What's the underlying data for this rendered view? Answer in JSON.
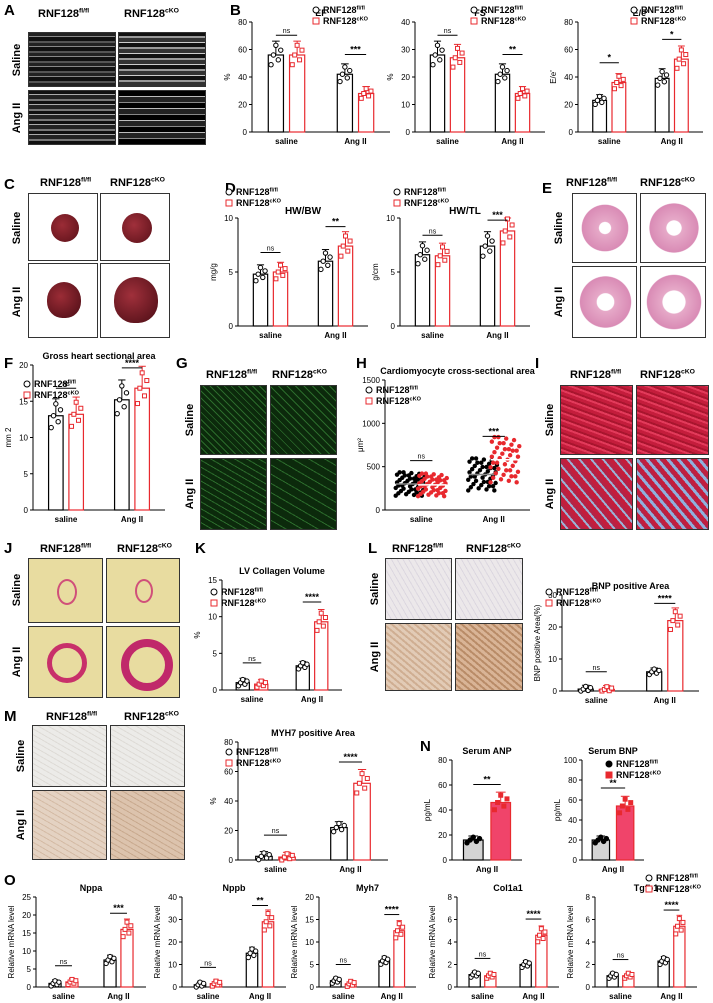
{
  "figure": {
    "geno_fl": "RNF128",
    "geno_fl_sup": "fl/fl",
    "geno_cko": "RNF128",
    "geno_cko_sup": "cKO",
    "row_saline": "Saline",
    "row_ang": "Ang II",
    "panels": {
      "A": "A",
      "B": "B",
      "C": "C",
      "D": "D",
      "E": "E",
      "F": "F",
      "G": "G",
      "H": "H",
      "I": "I",
      "J": "J",
      "K": "K",
      "L": "L",
      "M": "M",
      "N": "N",
      "O": "O"
    },
    "colors": {
      "fl": "#000000",
      "cko": "#e8292e",
      "cko_fill": "#f0446a",
      "fl_fill": "#d3d3d3"
    }
  },
  "chart_data": [
    {
      "id": "B1",
      "type": "bar",
      "title": "EF",
      "ylabel": "%",
      "categories": [
        "saline",
        "Ang II"
      ],
      "ylim": [
        0,
        80
      ],
      "yticks": [
        0,
        20,
        40,
        60,
        80
      ],
      "series": [
        {
          "name": "RNF128fl/fl",
          "values": [
            56,
            42
          ]
        },
        {
          "name": "RNF128cKO",
          "values": [
            56,
            28
          ]
        }
      ],
      "sig": [
        "ns",
        "***"
      ]
    },
    {
      "id": "B2",
      "type": "bar",
      "title": "FS",
      "ylabel": "%",
      "categories": [
        "saline",
        "Ang II"
      ],
      "ylim": [
        0,
        40
      ],
      "yticks": [
        0,
        10,
        20,
        30,
        40
      ],
      "series": [
        {
          "name": "RNF128fl/fl",
          "values": [
            28,
            21
          ]
        },
        {
          "name": "RNF128cKO",
          "values": [
            27,
            14
          ]
        }
      ],
      "sig": [
        "ns",
        "**"
      ]
    },
    {
      "id": "B3",
      "type": "bar",
      "title": "E/e'",
      "ylabel": "E/e'",
      "categories": [
        "saline",
        "Ang II"
      ],
      "ylim": [
        0,
        80
      ],
      "yticks": [
        0,
        20,
        40,
        60,
        80
      ],
      "series": [
        {
          "name": "RNF128fl/fl",
          "values": [
            23,
            39
          ]
        },
        {
          "name": "RNF128cKO",
          "values": [
            36,
            53
          ]
        }
      ],
      "sig": [
        "*",
        "*"
      ]
    },
    {
      "id": "D1",
      "type": "bar",
      "title": "HW/BW",
      "ylabel": "mg/g",
      "categories": [
        "saline",
        "Ang II"
      ],
      "ylim": [
        0,
        10
      ],
      "yticks": [
        0,
        5,
        10
      ],
      "series": [
        {
          "name": "RNF128fl/fl",
          "values": [
            4.8,
            6.0
          ]
        },
        {
          "name": "RNF128cKO",
          "values": [
            5.0,
            7.4
          ]
        }
      ],
      "sig": [
        "ns",
        "**"
      ]
    },
    {
      "id": "D2",
      "type": "bar",
      "title": "HW/TL",
      "ylabel": "g/cm",
      "categories": [
        "saline",
        "Ang II"
      ],
      "ylim": [
        0,
        10
      ],
      "yticks": [
        0,
        5,
        10
      ],
      "series": [
        {
          "name": "RNF128fl/fl",
          "values": [
            6.6,
            7.4
          ]
        },
        {
          "name": "RNF128cKO",
          "values": [
            6.5,
            8.8
          ]
        }
      ],
      "sig": [
        "ns",
        "***"
      ]
    },
    {
      "id": "F",
      "type": "bar",
      "title": "Gross heart sectional area",
      "ylabel": "mm 2",
      "categories": [
        "saline",
        "Ang II"
      ],
      "ylim": [
        0,
        20
      ],
      "yticks": [
        0,
        5,
        10,
        15,
        20
      ],
      "series": [
        {
          "name": "RNF128fl/fl",
          "values": [
            13,
            15.2
          ]
        },
        {
          "name": "RNF128cKO",
          "values": [
            13.2,
            16.8
          ]
        }
      ],
      "sig": [
        "ns",
        "****"
      ]
    },
    {
      "id": "H",
      "type": "scatter",
      "title": "Cardiomyocyte cross-sectional area",
      "ylabel": "μm²",
      "categories": [
        "saline",
        "Ang II"
      ],
      "ylim": [
        0,
        1500
      ],
      "yticks": [
        0,
        500,
        1000,
        1500
      ],
      "series": [
        {
          "name": "RNF128fl/fl",
          "values": [
            300,
            410
          ]
        },
        {
          "name": "RNF128cKO",
          "values": [
            290,
            580
          ]
        }
      ],
      "sig": [
        "ns",
        "***"
      ]
    },
    {
      "id": "K",
      "type": "bar",
      "title": "LV Collagen Volume",
      "ylabel": "%",
      "categories": [
        "saline",
        "Ang II"
      ],
      "ylim": [
        0,
        15
      ],
      "yticks": [
        0,
        5,
        10,
        15
      ],
      "series": [
        {
          "name": "RNF128fl/fl",
          "values": [
            1.0,
            3.3
          ]
        },
        {
          "name": "RNF128cKO",
          "values": [
            0.8,
            9.3
          ]
        }
      ],
      "sig": [
        "ns",
        "****"
      ]
    },
    {
      "id": "L",
      "type": "bar",
      "title": "BNP positive Area",
      "ylabel": "BNP positive Area(%)",
      "categories": [
        "saline",
        "Ang II"
      ],
      "ylim": [
        0,
        30
      ],
      "yticks": [
        0,
        10,
        20,
        30
      ],
      "series": [
        {
          "name": "RNF128fl/fl",
          "values": [
            0.6,
            6.0
          ]
        },
        {
          "name": "RNF128cKO",
          "values": [
            0.5,
            22
          ]
        }
      ],
      "sig": [
        "ns",
        "****"
      ]
    },
    {
      "id": "M",
      "type": "bar",
      "title": "MYH7 positive Area",
      "ylabel": "%",
      "categories": [
        "saline",
        "Ang II"
      ],
      "ylim": [
        0,
        80
      ],
      "yticks": [
        0,
        20,
        40,
        60,
        80
      ],
      "series": [
        {
          "name": "RNF128fl/fl",
          "values": [
            2.5,
            22
          ]
        },
        {
          "name": "RNF128cKO",
          "values": [
            2.0,
            52
          ]
        }
      ],
      "sig": [
        "ns",
        "****"
      ]
    },
    {
      "id": "N1",
      "type": "bar",
      "title": "Serum ANP",
      "ylabel": "pg/mL",
      "categories": [
        "Ang II"
      ],
      "ylim": [
        0,
        80
      ],
      "yticks": [
        0,
        20,
        40,
        60,
        80
      ],
      "series": [
        {
          "name": "RNF128fl/fl",
          "values": [
            16
          ]
        },
        {
          "name": "RNF128cKO",
          "values": [
            46
          ]
        }
      ],
      "sig": [
        "**"
      ]
    },
    {
      "id": "N2",
      "type": "bar",
      "title": "Serum BNP",
      "ylabel": "pg/mL",
      "categories": [
        "Ang II"
      ],
      "ylim": [
        0,
        100
      ],
      "yticks": [
        0,
        20,
        40,
        60,
        80,
        100
      ],
      "series": [
        {
          "name": "RNF128fl/fl",
          "values": [
            20
          ]
        },
        {
          "name": "RNF128cKO",
          "values": [
            54
          ]
        }
      ],
      "sig": [
        "**"
      ]
    },
    {
      "id": "O1",
      "type": "bar",
      "title": "Nppa",
      "ylabel": "Relative mRNA level",
      "categories": [
        "saline",
        "Ang II"
      ],
      "ylim": [
        0,
        25
      ],
      "yticks": [
        0,
        5,
        10,
        15,
        20,
        25
      ],
      "series": [
        {
          "name": "RNF128fl/fl",
          "values": [
            1,
            7.5
          ]
        },
        {
          "name": "RNF128cKO",
          "values": [
            1.4,
            16
          ]
        }
      ],
      "sig": [
        "ns",
        "***"
      ]
    },
    {
      "id": "O2",
      "type": "bar",
      "title": "Nppb",
      "ylabel": "Relative mRNA level",
      "categories": [
        "saline",
        "Ang II"
      ],
      "ylim": [
        0,
        40
      ],
      "yticks": [
        0,
        10,
        20,
        30,
        40
      ],
      "series": [
        {
          "name": "RNF128fl/fl",
          "values": [
            1,
            15
          ]
        },
        {
          "name": "RNF128cKO",
          "values": [
            1.5,
            29
          ]
        }
      ],
      "sig": [
        "ns",
        "**"
      ]
    },
    {
      "id": "O3",
      "type": "bar",
      "title": "Myh7",
      "ylabel": "Relative mRNA level",
      "categories": [
        "saline",
        "Ang II"
      ],
      "ylim": [
        0,
        20
      ],
      "yticks": [
        0,
        5,
        10,
        15,
        20
      ],
      "series": [
        {
          "name": "RNF128fl/fl",
          "values": [
            1.4,
            5.8
          ]
        },
        {
          "name": "RNF128cKO",
          "values": [
            0.7,
            12.5
          ]
        }
      ],
      "sig": [
        "ns",
        "****"
      ]
    },
    {
      "id": "O4",
      "type": "bar",
      "title": "Col1a1",
      "ylabel": "Relative mRNA level",
      "categories": [
        "saline",
        "Ang II"
      ],
      "ylim": [
        0,
        8
      ],
      "yticks": [
        0,
        2,
        4,
        6,
        8
      ],
      "series": [
        {
          "name": "RNF128fl/fl",
          "values": [
            1.1,
            2.0
          ]
        },
        {
          "name": "RNF128cKO",
          "values": [
            1.0,
            4.6
          ]
        }
      ],
      "sig": [
        "ns",
        "****"
      ]
    },
    {
      "id": "O5",
      "type": "bar",
      "title": "Tgfb1",
      "ylabel": "Relative mRNA level",
      "categories": [
        "saline",
        "Ang II"
      ],
      "ylim": [
        0,
        8
      ],
      "yticks": [
        0,
        2,
        4,
        6,
        8
      ],
      "series": [
        {
          "name": "RNF128fl/fl",
          "values": [
            1.0,
            2.3
          ]
        },
        {
          "name": "RNF128cKO",
          "values": [
            1.0,
            5.4
          ]
        }
      ],
      "sig": [
        "ns",
        "****"
      ]
    }
  ]
}
